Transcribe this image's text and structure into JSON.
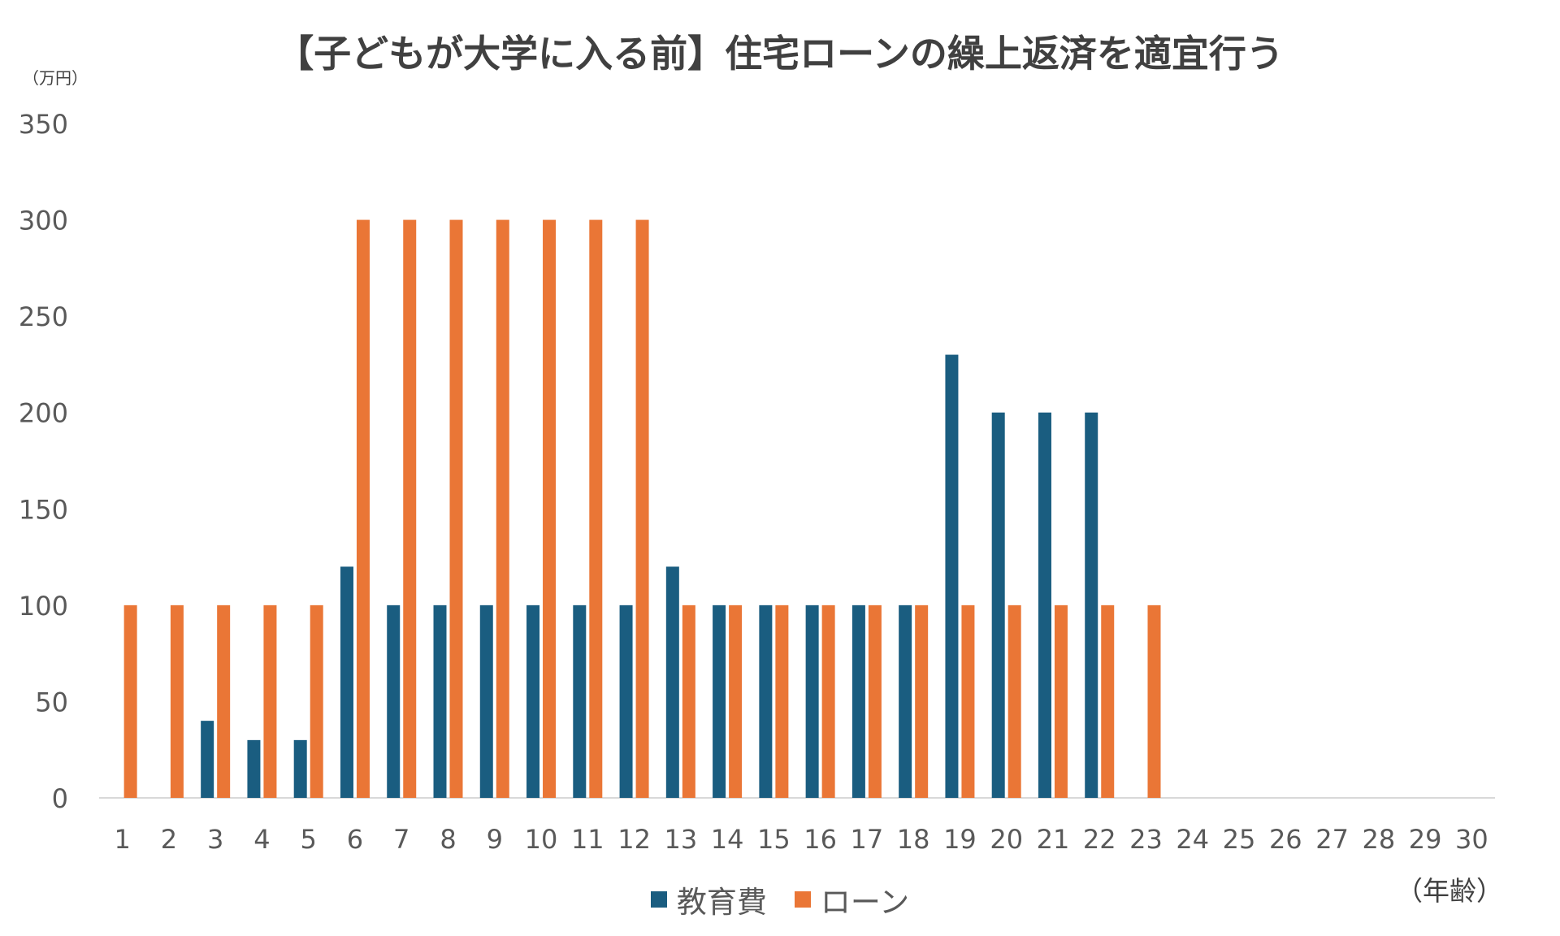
{
  "chart_data": {
    "type": "bar",
    "title": "【子どもが大学に入る前】住宅ローンの繰上返済を適宜行う",
    "ylabel": "（万円）",
    "xlabel": "（年齢）",
    "ylim": [
      0,
      350
    ],
    "yticks": [
      0,
      50,
      100,
      150,
      200,
      250,
      300,
      350
    ],
    "categories": [
      "1",
      "2",
      "3",
      "4",
      "5",
      "6",
      "7",
      "8",
      "9",
      "10",
      "11",
      "12",
      "13",
      "14",
      "15",
      "16",
      "17",
      "18",
      "19",
      "20",
      "21",
      "22",
      "23",
      "24",
      "25",
      "26",
      "27",
      "28",
      "29",
      "30"
    ],
    "series": [
      {
        "name": "教育費",
        "color": "#1a5d80",
        "values": [
          0,
          0,
          40,
          30,
          30,
          120,
          100,
          100,
          100,
          100,
          100,
          100,
          120,
          100,
          100,
          100,
          100,
          100,
          230,
          200,
          200,
          200,
          0,
          0,
          0,
          0,
          0,
          0,
          0,
          0
        ]
      },
      {
        "name": "ローン",
        "color": "#ea7636",
        "values": [
          100,
          100,
          100,
          100,
          100,
          300,
          300,
          300,
          300,
          300,
          300,
          300,
          100,
          100,
          100,
          100,
          100,
          100,
          100,
          100,
          100,
          100,
          100,
          0,
          0,
          0,
          0,
          0,
          0,
          0
        ]
      }
    ],
    "grid": false,
    "legend_position": "bottom"
  }
}
